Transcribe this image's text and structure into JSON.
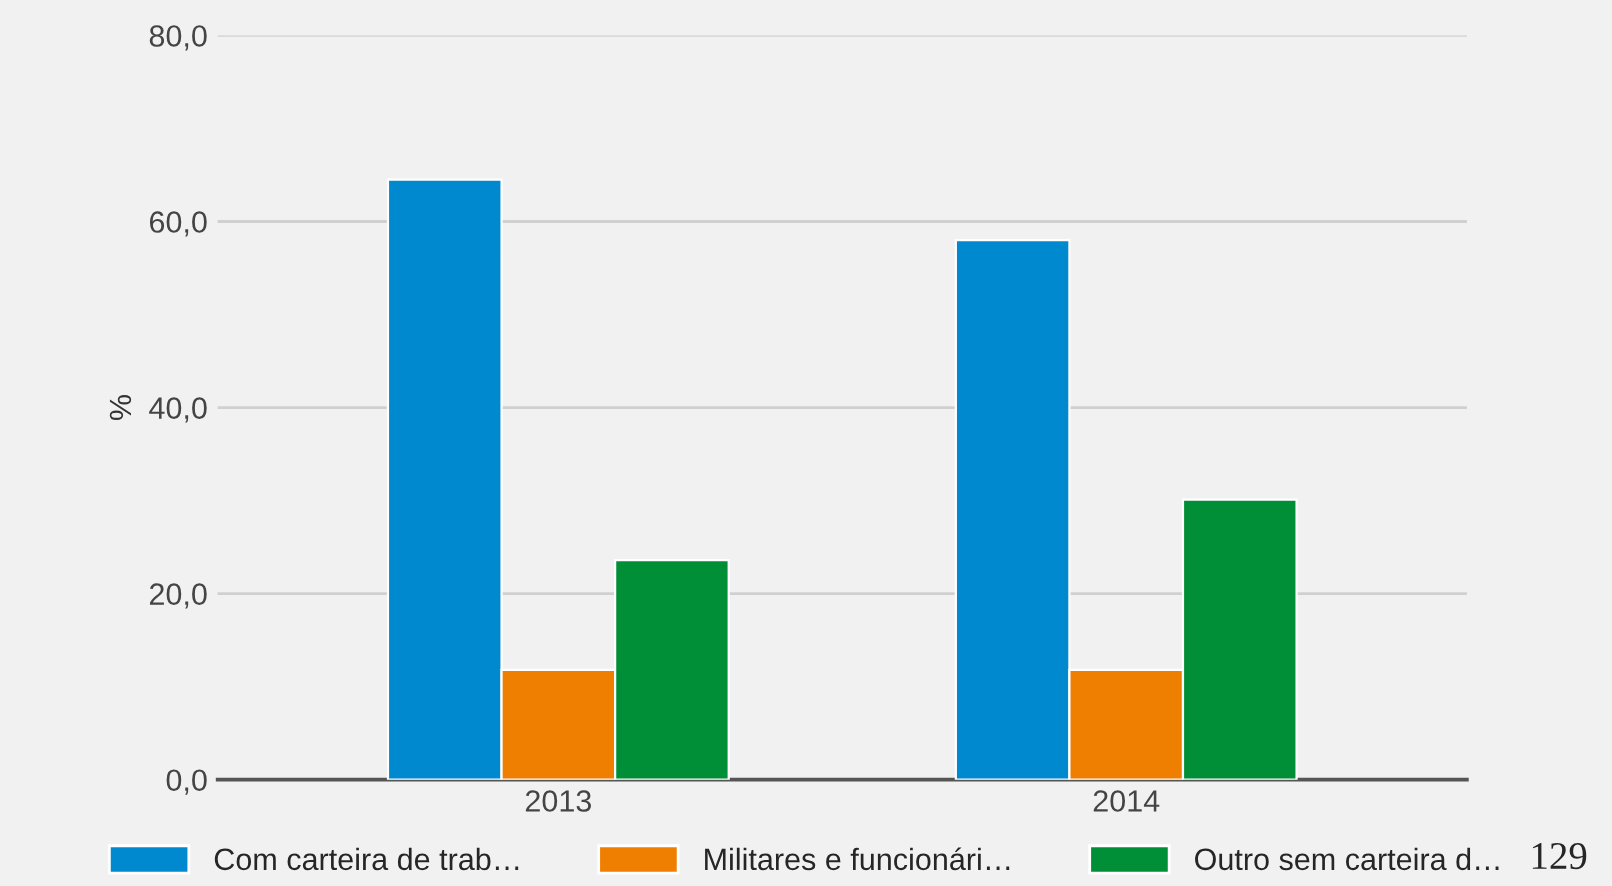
{
  "chart_data": {
    "type": "bar",
    "ylabel": "%",
    "categories": [
      "2013",
      "2014"
    ],
    "series": [
      {
        "name": "Com carteira de trab…",
        "color": "#0089cf",
        "values": [
          64.5,
          58.0
        ]
      },
      {
        "name": "Militares e funcionári…",
        "color": "#ef7f00",
        "values": [
          11.8,
          11.8
        ]
      },
      {
        "name": "Outro sem carteira d…",
        "color": "#008f36",
        "values": [
          23.6,
          30.1
        ]
      }
    ],
    "ylim": [
      0,
      80
    ],
    "yticks": [
      {
        "value": 0,
        "label": "0,0"
      },
      {
        "value": 20,
        "label": "20,0"
      },
      {
        "value": 40,
        "label": "40,0"
      },
      {
        "value": 60,
        "label": "60,0"
      },
      {
        "value": 80,
        "label": "80,0"
      }
    ],
    "grid": "y",
    "legend": "bottom",
    "annotations": [
      "129"
    ]
  }
}
